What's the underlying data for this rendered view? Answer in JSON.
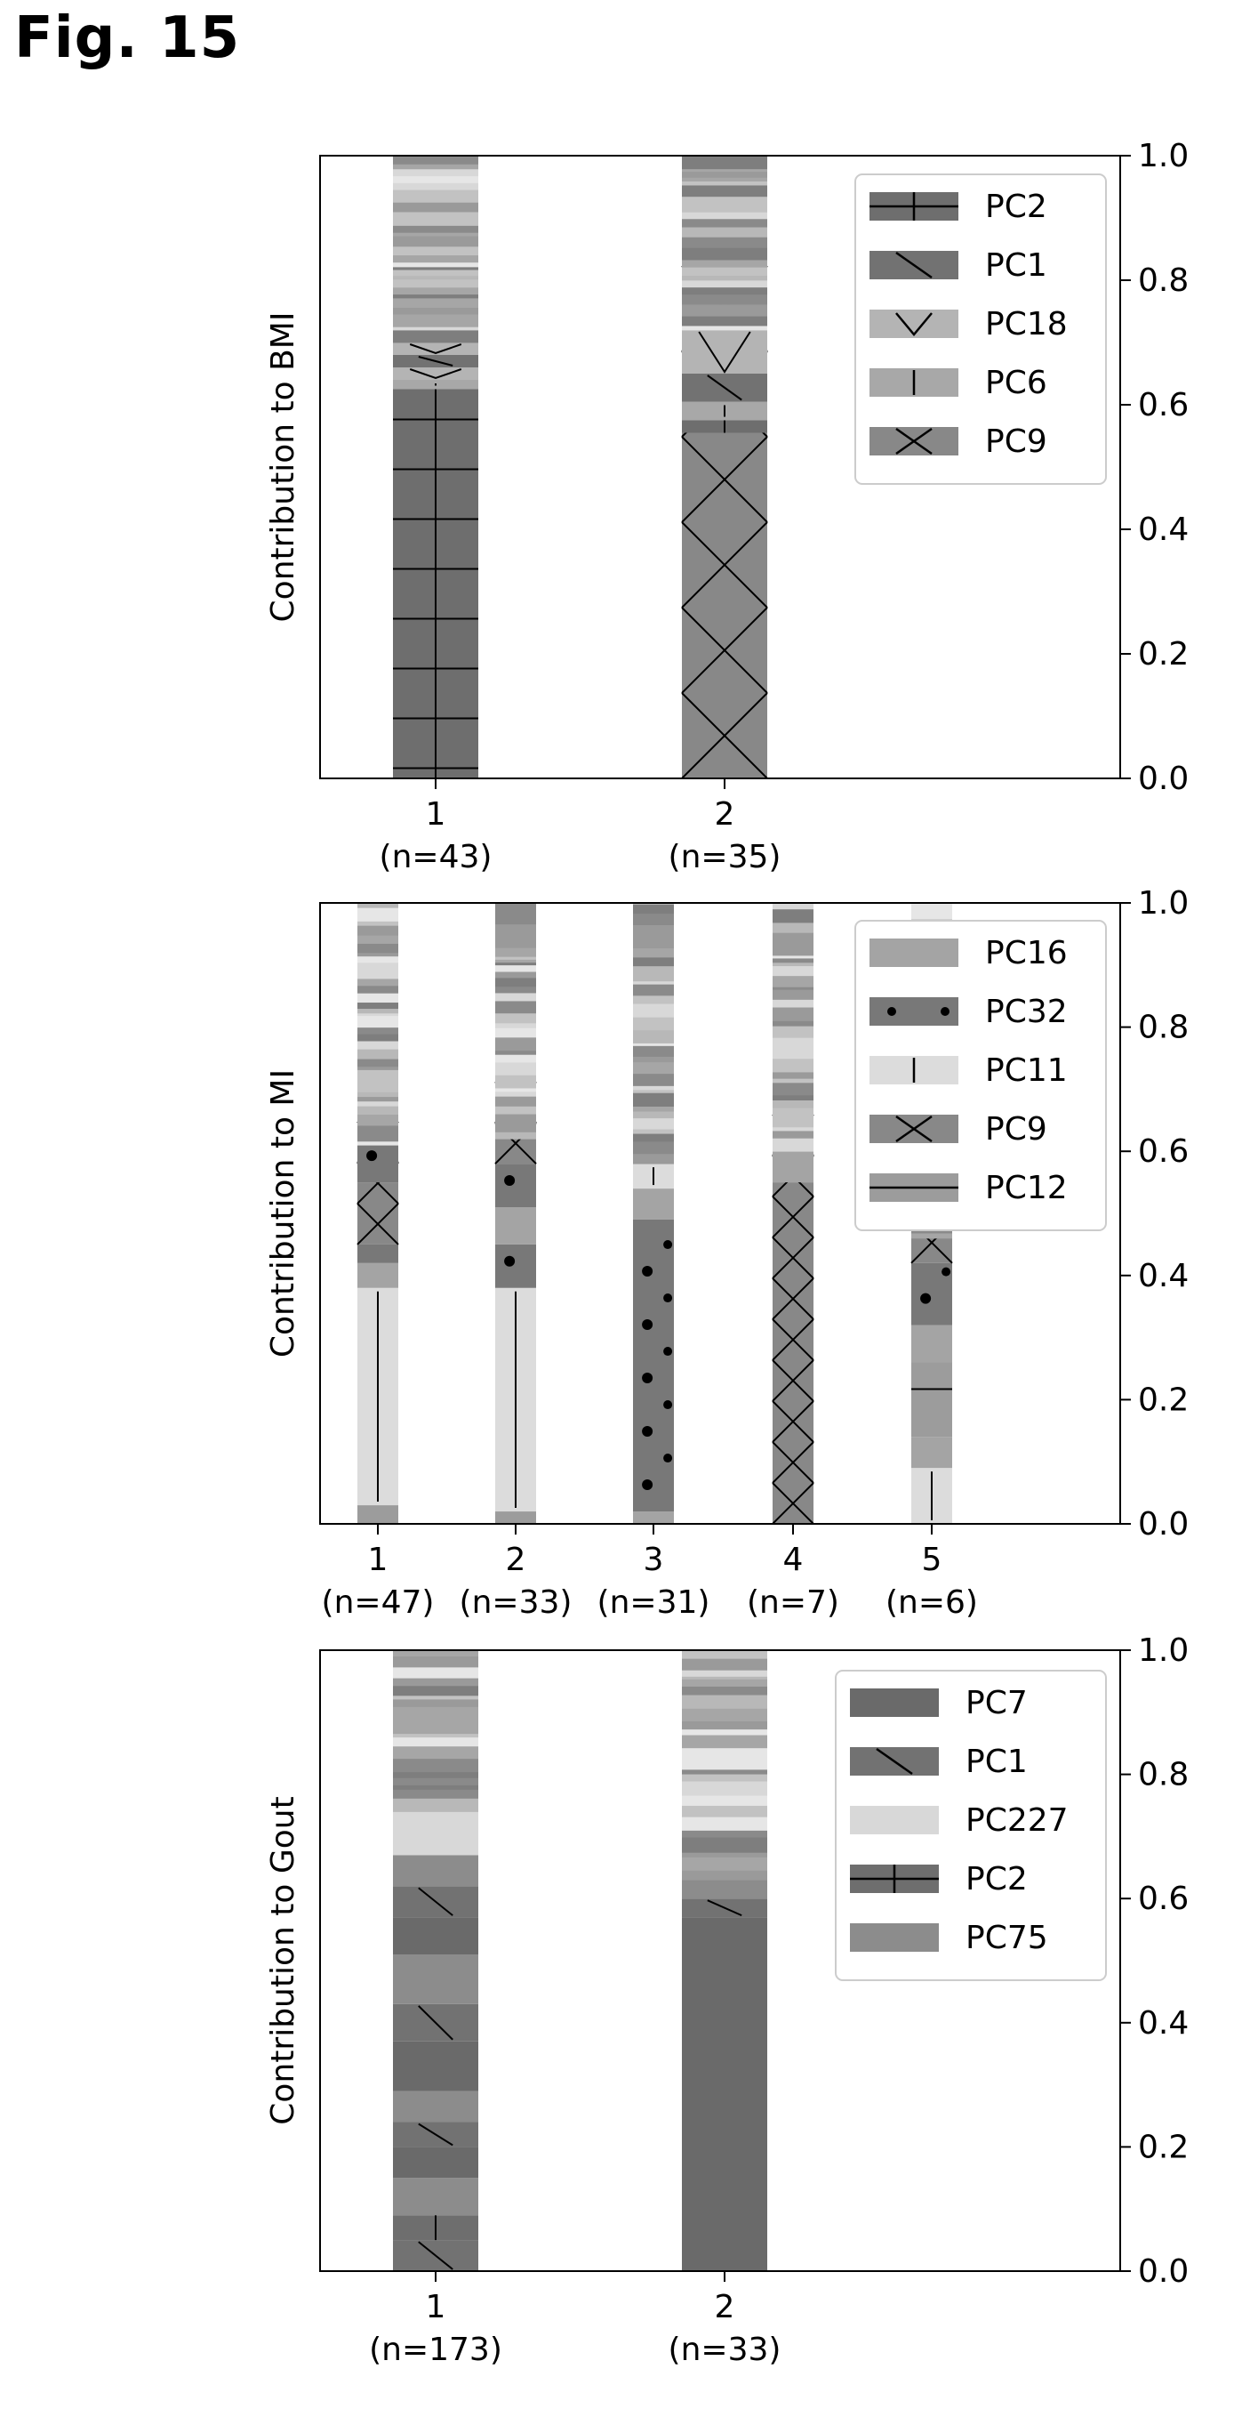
{
  "figure_title": "Fig. 15",
  "colors": {
    "PC2": "#6e6e6e",
    "PC1": "#727272",
    "PC18": "#b4b4b4",
    "PC6": "#a8a8a8",
    "PC9": "#888888",
    "PC16": "#a4a4a4",
    "PC32": "#787878",
    "PC11": "#dcdcdc",
    "PC12": "#9c9c9c",
    "PC7": "#6a6a6a",
    "PC227": "#d8d8d8",
    "PC75": "#8c8c8c"
  },
  "chart_data": [
    {
      "type": "bar",
      "stacked": true,
      "ylabel": "Contribution to BMI",
      "ylim": [
        0,
        1.0
      ],
      "yticks": [
        "0.0",
        "0.2",
        "0.4",
        "0.6",
        "0.8",
        "1.0"
      ],
      "y_axis_side": "right",
      "categories": [
        "1",
        "2"
      ],
      "category_n": [
        "(n=43)",
        "(n=35)"
      ],
      "legend": {
        "placement": "top-right",
        "entries": [
          "PC2",
          "PC1",
          "PC18",
          "PC6",
          "PC9"
        ]
      },
      "stacks": [
        [
          {
            "pc": "PC2",
            "v": 0.625
          },
          {
            "pc": "PC6",
            "v": 0.015
          },
          {
            "pc": "PC18",
            "v": 0.02
          },
          {
            "pc": "PC1",
            "v": 0.02
          },
          {
            "pc": "PC18",
            "v": 0.02
          }
        ],
        [
          {
            "pc": "PC9",
            "v": 0.555
          },
          {
            "pc": "PC2",
            "v": 0.02
          },
          {
            "pc": "PC6",
            "v": 0.03
          },
          {
            "pc": "PC1",
            "v": 0.045
          },
          {
            "pc": "PC18",
            "v": 0.07
          }
        ]
      ]
    },
    {
      "type": "bar",
      "stacked": true,
      "ylabel": "Contribution to MI",
      "ylim": [
        0,
        1.0
      ],
      "yticks": [
        "0.0",
        "0.2",
        "0.4",
        "0.6",
        "0.8",
        "1.0"
      ],
      "y_axis_side": "right",
      "categories": [
        "1",
        "2",
        "3",
        "4",
        "5"
      ],
      "category_n": [
        "(n=47)",
        "(n=33)",
        "(n=31)",
        "(n=7)",
        "(n=6)"
      ],
      "legend": {
        "placement": "top-right",
        "entries": [
          "PC16",
          "PC32",
          "PC11",
          "PC9",
          "PC12"
        ]
      },
      "stacks": [
        [
          {
            "pc": "PC12",
            "v": 0.03
          },
          {
            "pc": "PC11",
            "v": 0.35
          },
          {
            "pc": "PC16",
            "v": 0.04
          },
          {
            "pc": "PC32",
            "v": 0.03
          },
          {
            "pc": "PC9",
            "v": 0.1
          },
          {
            "pc": "PC32",
            "v": 0.06
          }
        ],
        [
          {
            "pc": "PC12",
            "v": 0.02
          },
          {
            "pc": "PC11",
            "v": 0.36
          },
          {
            "pc": "PC32",
            "v": 0.07
          },
          {
            "pc": "PC16",
            "v": 0.06
          },
          {
            "pc": "PC32",
            "v": 0.07
          },
          {
            "pc": "PC9",
            "v": 0.04
          }
        ],
        [
          {
            "pc": "PC16",
            "v": 0.02
          },
          {
            "pc": "PC32",
            "v": 0.47
          },
          {
            "pc": "PC16",
            "v": 0.05
          },
          {
            "pc": "PC11",
            "v": 0.04
          }
        ],
        [
          {
            "pc": "PC9",
            "v": 0.55
          },
          {
            "pc": "PC16",
            "v": 0.05
          }
        ],
        [
          {
            "pc": "PC11",
            "v": 0.09
          },
          {
            "pc": "PC16",
            "v": 0.05
          },
          {
            "pc": "PC12",
            "v": 0.12
          },
          {
            "pc": "PC16",
            "v": 0.06
          },
          {
            "pc": "PC32",
            "v": 0.1
          },
          {
            "pc": "PC9",
            "v": 0.04
          }
        ]
      ]
    },
    {
      "type": "bar",
      "stacked": true,
      "ylabel": "Contribution to Gout",
      "ylim": [
        0,
        1.0
      ],
      "yticks": [
        "0.0",
        "0.2",
        "0.4",
        "0.6",
        "0.8",
        "1.0"
      ],
      "y_axis_side": "right",
      "categories": [
        "1",
        "2"
      ],
      "category_n": [
        "(n=173)",
        "(n=33)"
      ],
      "legend": {
        "placement": "top-right",
        "entries": [
          "PC7",
          "PC1",
          "PC227",
          "PC2",
          "PC75"
        ]
      },
      "stacks": [
        [
          {
            "pc": "PC1",
            "v": 0.05
          },
          {
            "pc": "PC2",
            "v": 0.04
          },
          {
            "pc": "PC75",
            "v": 0.06
          },
          {
            "pc": "PC7",
            "v": 0.05
          },
          {
            "pc": "PC1",
            "v": 0.04
          },
          {
            "pc": "PC75",
            "v": 0.05
          },
          {
            "pc": "PC7",
            "v": 0.08
          },
          {
            "pc": "PC1",
            "v": 0.06
          },
          {
            "pc": "PC75",
            "v": 0.08
          },
          {
            "pc": "PC7",
            "v": 0.06
          },
          {
            "pc": "PC1",
            "v": 0.05
          },
          {
            "pc": "PC75",
            "v": 0.05
          },
          {
            "pc": "PC227",
            "v": 0.07
          }
        ],
        [
          {
            "pc": "PC7",
            "v": 0.57
          },
          {
            "pc": "PC1",
            "v": 0.03
          },
          {
            "pc": "PC75",
            "v": 0.03
          }
        ]
      ]
    }
  ]
}
